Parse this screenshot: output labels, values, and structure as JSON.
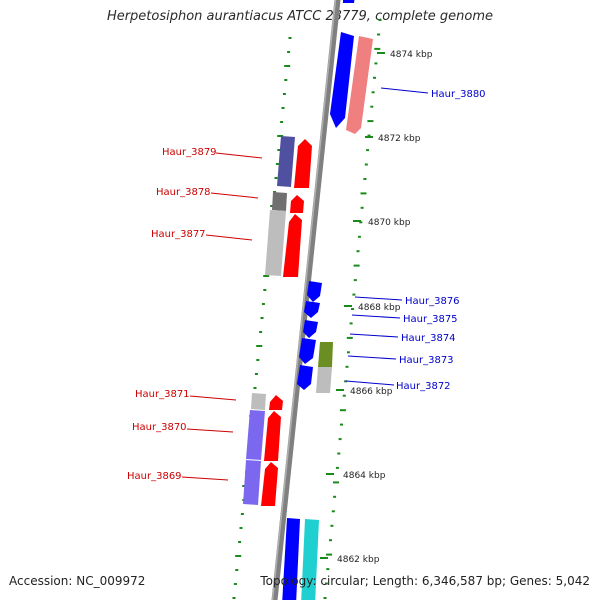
{
  "title": "Herpetosiphon aurantiacus ATCC 23779, complete genome",
  "footer": {
    "accession": "Accession: NC_009972",
    "summary": "Topology: circular; Length: 6,346,587 bp; Genes: 5,042"
  },
  "ticks": [
    "4874 kbp",
    "4872 kbp",
    "4870 kbp",
    "4868 kbp",
    "4866 kbp",
    "4864 kbp",
    "4862 kbp"
  ],
  "labels_forward": [
    "Haur_3880",
    "Haur_3876",
    "Haur_3875",
    "Haur_3874",
    "Haur_3873",
    "Haur_3872"
  ],
  "labels_reverse": [
    "Haur_3879",
    "Haur_3878",
    "Haur_3877",
    "Haur_3871",
    "Haur_3870",
    "Haur_3869"
  ],
  "colors": {
    "forward_label": "#0000cc",
    "reverse_label": "#cc0000",
    "backbone": "#808080",
    "gc_dots": "#1a8a1a",
    "blue": "#0000ff",
    "red": "#ff0000",
    "pink": "#f08080",
    "cyan": "#20d0d0",
    "navy_violet": "#5050a0",
    "lavender": "#7b68ee",
    "grey": "#bdbdbd",
    "dark_grey": "#707070",
    "olive": "#6b8e23"
  }
}
